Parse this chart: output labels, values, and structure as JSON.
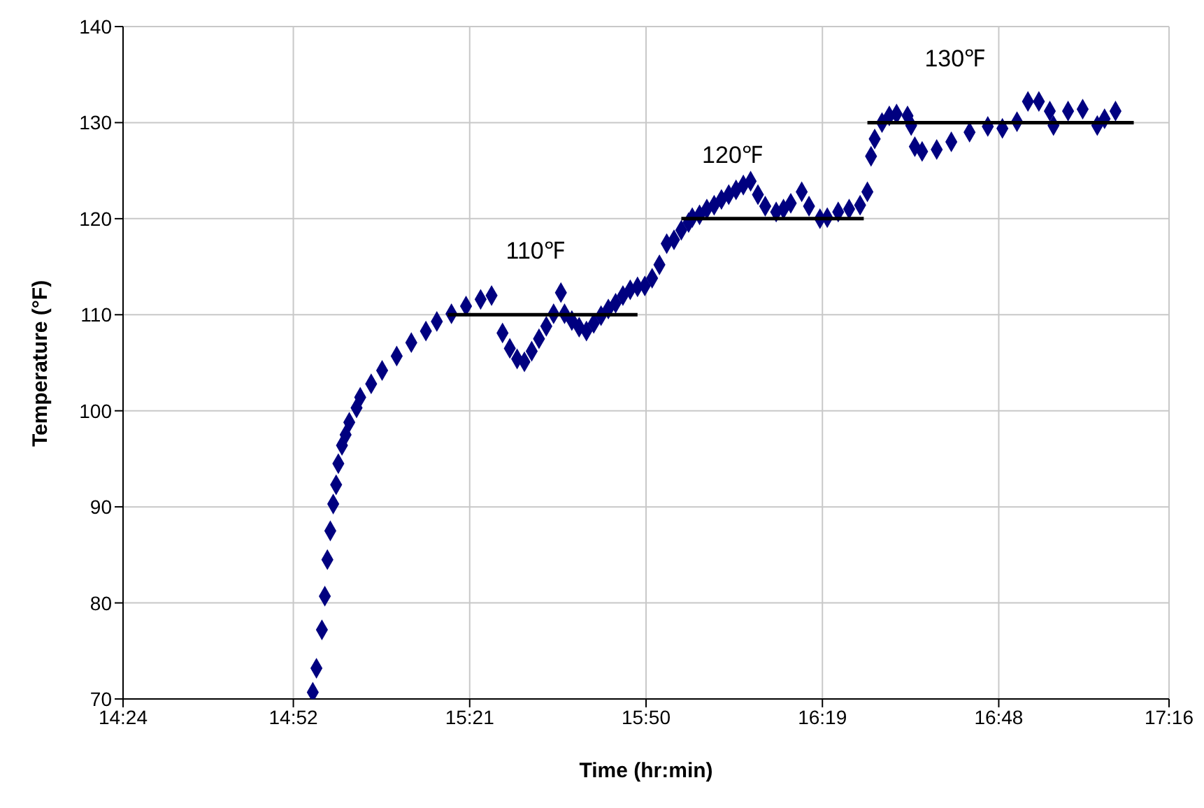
{
  "chart_data": {
    "type": "scatter",
    "xlabel": "Time (hr:min)",
    "ylabel": "Temperature (°F)",
    "xlim": [
      14.4,
      17.2667
    ],
    "xticks": [
      {
        "value": 14.4,
        "label": "14:24"
      },
      {
        "value": 14.8667,
        "label": "14:52"
      },
      {
        "value": 15.35,
        "label": "15:21"
      },
      {
        "value": 15.8333,
        "label": "15:50"
      },
      {
        "value": 16.3167,
        "label": "16:19"
      },
      {
        "value": 16.8,
        "label": "16:48"
      },
      {
        "value": 17.2667,
        "label": "17:16"
      }
    ],
    "ylim": [
      70,
      140
    ],
    "yticks": [
      70,
      80,
      90,
      100,
      110,
      120,
      130,
      140
    ],
    "grid": true,
    "legend": false,
    "marker": "diamond",
    "series": [
      {
        "type": "scatter",
        "color": "#000080",
        "x": [
          14.92,
          14.93,
          14.945,
          14.953,
          14.96,
          14.968,
          14.976,
          14.984,
          14.99,
          15.0,
          15.01,
          15.02,
          15.04,
          15.05,
          15.08,
          15.11,
          15.15,
          15.19,
          15.23,
          15.26,
          15.3,
          15.34,
          15.38,
          15.41,
          15.44,
          15.46,
          15.48,
          15.5,
          15.52,
          15.54,
          15.56,
          15.58,
          15.6,
          15.61,
          15.63,
          15.65,
          15.67,
          15.69,
          15.71,
          15.73,
          15.75,
          15.77,
          15.79,
          15.81,
          15.83,
          15.85,
          15.87,
          15.89,
          15.91,
          15.93,
          15.95,
          15.96,
          15.98,
          16.0,
          16.02,
          16.04,
          16.06,
          16.08,
          16.1,
          16.12,
          16.14,
          16.16,
          16.19,
          16.21,
          16.23,
          16.26,
          16.28,
          16.31,
          16.33,
          16.36,
          16.39,
          16.42,
          16.44,
          16.45,
          16.46,
          16.48,
          16.5,
          16.52,
          16.55,
          16.56,
          16.57,
          16.59,
          16.63,
          16.67,
          16.72,
          16.77,
          16.81,
          16.85,
          16.88,
          16.91,
          16.94,
          16.95,
          16.99,
          17.03,
          17.07,
          17.09,
          17.12
        ],
        "values": [
          70.7,
          73.2,
          77.2,
          80.7,
          84.5,
          87.5,
          90.3,
          92.3,
          94.5,
          96.4,
          97.5,
          98.8,
          100.3,
          101.4,
          102.8,
          104.2,
          105.7,
          107.1,
          108.3,
          109.3,
          110.1,
          110.9,
          111.6,
          112.0,
          108.1,
          106.5,
          105.4,
          105.1,
          106.2,
          107.5,
          108.8,
          110.1,
          112.3,
          110.1,
          109.4,
          108.7,
          108.3,
          109.1,
          109.9,
          110.6,
          111.2,
          112.0,
          112.6,
          112.9,
          113.0,
          113.8,
          115.2,
          117.4,
          117.8,
          118.8,
          119.6,
          120.1,
          120.4,
          121.0,
          121.4,
          122.0,
          122.5,
          123.0,
          123.5,
          123.9,
          122.5,
          121.3,
          120.7,
          121.0,
          121.6,
          122.8,
          121.3,
          120.0,
          120.1,
          120.7,
          121.0,
          121.4,
          122.8,
          126.5,
          128.3,
          130.0,
          130.7,
          130.9,
          130.7,
          129.7,
          127.5,
          127.0,
          127.2,
          128.0,
          129.0,
          129.6,
          129.4,
          130.1,
          132.2,
          132.2,
          131.2,
          129.7,
          131.2,
          131.4,
          129.7,
          130.4,
          131.2
        ]
      },
      {
        "type": "line",
        "color": "#000000",
        "marker": "none",
        "x": [
          15.29,
          15.81
        ],
        "values": [
          110,
          110
        ]
      },
      {
        "type": "line",
        "color": "#000000",
        "marker": "none",
        "x": [
          15.93,
          16.43
        ],
        "values": [
          120,
          120
        ]
      },
      {
        "type": "line",
        "color": "#000000",
        "marker": "none",
        "x": [
          16.44,
          17.17
        ],
        "values": [
          130,
          130
        ]
      }
    ],
    "annotations": [
      {
        "text": "110℉",
        "x": 15.53,
        "y": 110
      },
      {
        "text": "120℉",
        "x": 16.07,
        "y": 120
      },
      {
        "text": "130℉",
        "x": 16.68,
        "y": 130
      }
    ]
  }
}
